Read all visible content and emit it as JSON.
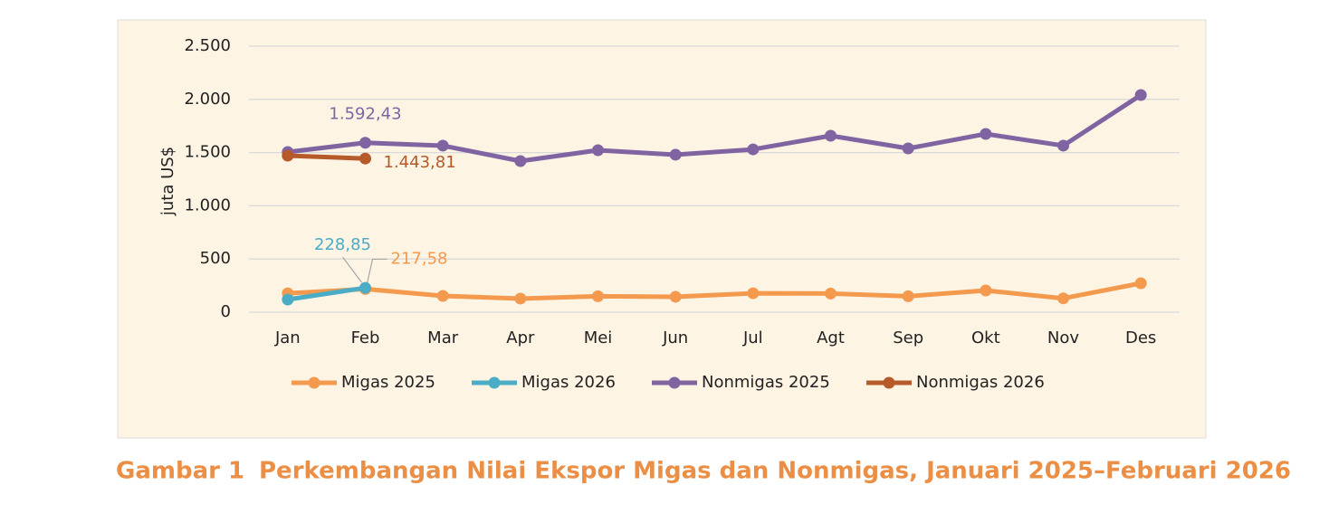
{
  "chart_data": {
    "type": "line",
    "figure_label": "Gambar 1",
    "title": "Perkembangan Nilai Ekspor Migas dan Nonmigas, Januari 2025–Februari 2026",
    "ylabel": "juta US$",
    "categories": [
      "Jan",
      "Feb",
      "Mar",
      "Apr",
      "Mei",
      "Jun",
      "Jul",
      "Agt",
      "Sep",
      "Okt",
      "Nov",
      "Des"
    ],
    "series": [
      {
        "name": "Migas 2025",
        "color": "#f39a4e",
        "values": [
          178,
          217.58,
          153,
          128,
          150,
          145,
          178,
          175,
          150,
          204,
          130,
          272
        ],
        "value_labels": [
          null,
          "217,58",
          null,
          null,
          null,
          null,
          null,
          null,
          null,
          null,
          null,
          null
        ]
      },
      {
        "name": "Migas 2026",
        "color": "#4bacc6",
        "values": [
          119,
          228.85,
          null,
          null,
          null,
          null,
          null,
          null,
          null,
          null,
          null,
          null
        ],
        "value_labels": [
          null,
          "228,85",
          null,
          null,
          null,
          null,
          null,
          null,
          null,
          null,
          null,
          null
        ]
      },
      {
        "name": "Nonmigas 2025",
        "color": "#8064a2",
        "values": [
          1505,
          1592.43,
          1565,
          1420,
          1522,
          1480,
          1530,
          1658,
          1539,
          1675,
          1565,
          2041
        ],
        "value_labels": [
          null,
          "1.592,43",
          null,
          null,
          null,
          null,
          null,
          null,
          null,
          null,
          null,
          null
        ]
      },
      {
        "name": "Nonmigas 2026",
        "color": "#b55a28",
        "values": [
          1471,
          1443.81,
          null,
          null,
          null,
          null,
          null,
          null,
          null,
          null,
          null,
          null
        ],
        "value_labels": [
          null,
          "1.443,81",
          null,
          null,
          null,
          null,
          null,
          null,
          null,
          null,
          null,
          null
        ]
      }
    ],
    "ylim": [
      0,
      2500
    ],
    "yticks": [
      0,
      500,
      {
        "value": 1000,
        "label": "1.000"
      },
      {
        "value": 1500,
        "label": "1.500"
      },
      {
        "value": 2000,
        "label": "2.000"
      },
      {
        "value": 2500,
        "label": "2.500"
      }
    ],
    "grid": true,
    "legend": "bottom"
  }
}
